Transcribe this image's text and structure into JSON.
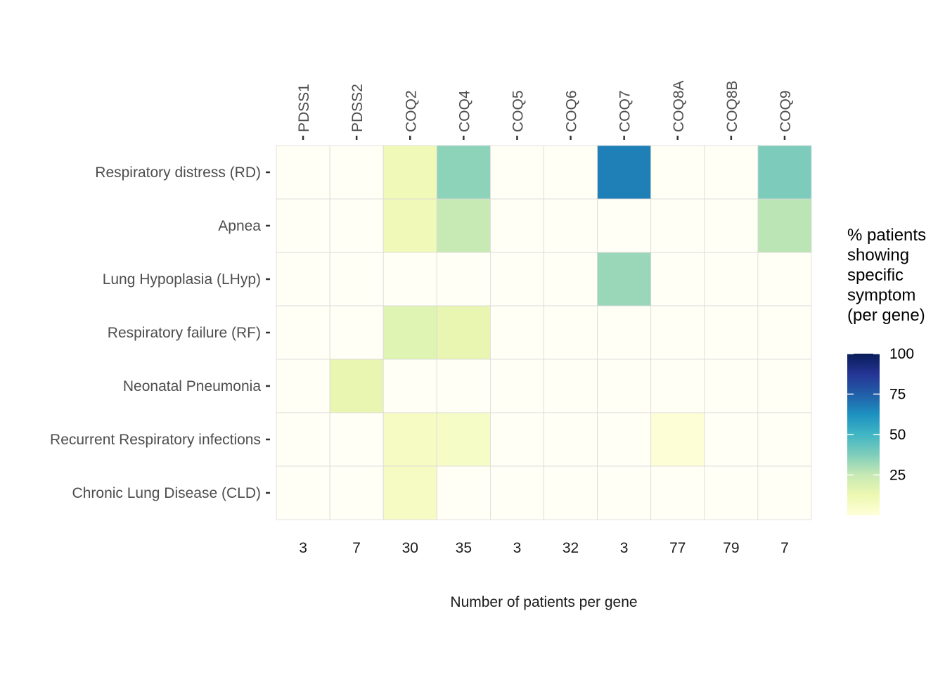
{
  "chart_data": {
    "type": "heatmap",
    "genes": [
      "PDSS1",
      "PDSS2",
      "COQ2",
      "COQ4",
      "COQ5",
      "COQ6",
      "COQ7",
      "COQ8A",
      "COQ8B",
      "COQ9"
    ],
    "patient_counts": [
      "3",
      "7",
      "30",
      "35",
      "3",
      "32",
      "3",
      "77",
      "79",
      "7"
    ],
    "symptoms": [
      "Respiratory distress (RD)",
      "Apnea",
      "Lung Hypoplasia (LHyp)",
      "Respiratory failure (RF)",
      "Neonatal Pneumonia",
      "Recurrent Respiratory infections",
      "Chronic Lung Disease (CLD)"
    ],
    "values": [
      [
        0,
        0,
        10,
        35,
        0,
        0,
        67,
        0,
        0,
        38
      ],
      [
        0,
        0,
        10,
        25,
        0,
        0,
        0,
        0,
        0,
        27
      ],
      [
        0,
        0,
        0,
        0,
        0,
        0,
        33,
        0,
        0,
        0
      ],
      [
        0,
        0,
        17,
        14,
        0,
        0,
        0,
        0,
        0,
        0
      ],
      [
        0,
        14,
        0,
        0,
        0,
        0,
        0,
        0,
        0,
        0
      ],
      [
        0,
        0,
        7,
        6,
        0,
        0,
        0,
        1,
        0,
        0
      ],
      [
        0,
        0,
        7,
        0,
        0,
        0,
        0,
        0,
        0,
        0
      ]
    ],
    "xlabel": "Number of patients per gene",
    "legend": {
      "title_lines": [
        "% patients",
        "showing",
        "specific",
        "symptom",
        "(per gene)"
      ],
      "ticks": [
        "25",
        "50",
        "75",
        "100"
      ],
      "range": [
        0,
        100
      ],
      "placement": "right"
    },
    "colors": {
      "low": "#FFFFF5",
      "scale": [
        "#FFFFD9",
        "#EDF8B1",
        "#C7E9B4",
        "#7FCDBB",
        "#41B6C4",
        "#1D91C0",
        "#225EA8",
        "#253494",
        "#081D58"
      ],
      "grid": "#d9d9d9"
    }
  }
}
